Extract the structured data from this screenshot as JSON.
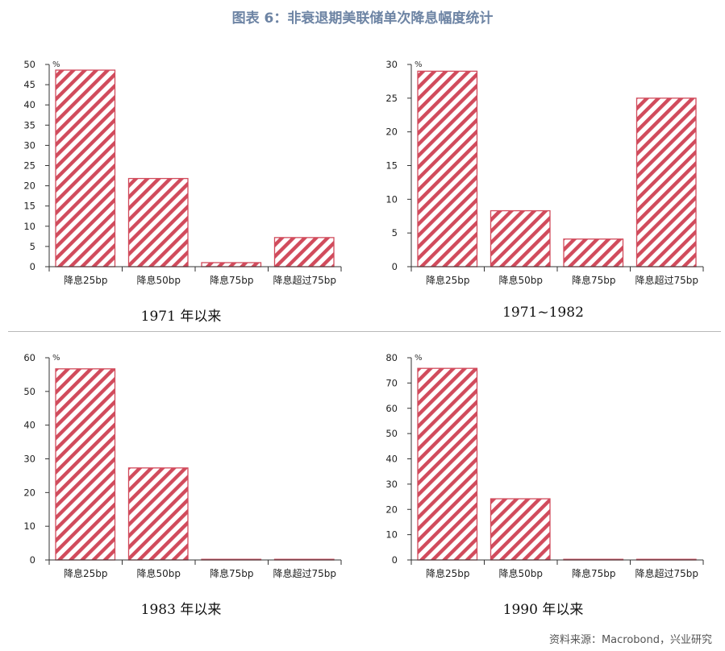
{
  "figure": {
    "title": "图表 6：非衰退期美联储单次降息幅度统计",
    "source": "资料来源：Macrobond，兴业研究",
    "bar_color": "#d14b5c"
  },
  "chart_data": [
    {
      "type": "bar",
      "title": "1971 年以来",
      "unit_label": "%",
      "categories": [
        "降息25bp",
        "降息50bp",
        "降息75bp",
        "降息超过75bp"
      ],
      "values": [
        48.6,
        21.8,
        1.0,
        7.2
      ],
      "ylim": [
        0,
        50
      ],
      "yticks": [
        0,
        5,
        10,
        15,
        20,
        25,
        30,
        35,
        40,
        45,
        50
      ],
      "grid": false
    },
    {
      "type": "bar",
      "title": "1971~1982",
      "unit_label": "%",
      "categories": [
        "降息25bp",
        "降息50bp",
        "降息75bp",
        "降息超过75bp"
      ],
      "values": [
        29.0,
        8.3,
        4.1,
        25.0
      ],
      "ylim": [
        0,
        30
      ],
      "yticks": [
        0,
        5,
        10,
        15,
        20,
        25,
        30
      ],
      "grid": false
    },
    {
      "type": "bar",
      "title": "1983 年以来",
      "unit_label": "%",
      "categories": [
        "降息25bp",
        "降息50bp",
        "降息75bp",
        "降息超过75bp"
      ],
      "values": [
        56.7,
        27.3,
        0,
        0
      ],
      "ylim": [
        0,
        60
      ],
      "yticks": [
        0,
        10,
        20,
        30,
        40,
        50,
        60
      ],
      "grid": false
    },
    {
      "type": "bar",
      "title": "1990 年以来",
      "unit_label": "%",
      "categories": [
        "降息25bp",
        "降息50bp",
        "降息75bp",
        "降息超过75bp"
      ],
      "values": [
        75.8,
        24.2,
        0,
        0
      ],
      "ylim": [
        0,
        80
      ],
      "yticks": [
        0,
        10,
        20,
        30,
        40,
        50,
        60,
        70,
        80
      ],
      "grid": false
    }
  ]
}
